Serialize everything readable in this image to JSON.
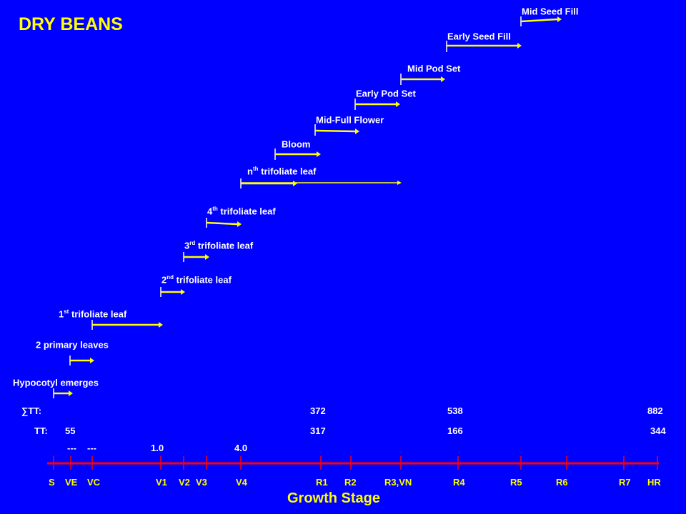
{
  "title": "DRY BEANS",
  "stages": [
    {
      "pre": "",
      "sup": "",
      "post": "Hypocotyl emerges"
    },
    {
      "pre": "",
      "sup": "",
      "post": "2 primary leaves"
    },
    {
      "pre": "1",
      "sup": "st",
      "post": " trifoliate leaf"
    },
    {
      "pre": "2",
      "sup": "nd",
      "post": " trifoliate leaf"
    },
    {
      "pre": "3",
      "sup": "rd",
      "post": " trifoliate leaf"
    },
    {
      "pre": "4",
      "sup": "th",
      "post": " trifoliate leaf"
    },
    {
      "pre": "n",
      "sup": "th",
      "post": " trifoliate leaf"
    },
    {
      "pre": "",
      "sup": "",
      "post": "Bloom"
    },
    {
      "pre": "",
      "sup": "",
      "post": "Mid-Full Flower"
    },
    {
      "pre": "",
      "sup": "",
      "post": "Early Pod Set"
    },
    {
      "pre": "",
      "sup": "",
      "post": "Mid Pod Set"
    },
    {
      "pre": "",
      "sup": "",
      "post": "Early Seed Fill"
    },
    {
      "pre": "",
      "sup": "",
      "post": "Mid Seed Fill"
    }
  ],
  "sum_tt": {
    "label": "∑TT:",
    "values": [
      "372",
      "538",
      "882"
    ]
  },
  "tt": {
    "label": "TT:",
    "values": [
      "55",
      "317",
      "166",
      "344"
    ]
  },
  "leaf_row": [
    "---",
    "---",
    "1.0",
    "4.0"
  ],
  "axis_labels": [
    "S",
    "VE",
    "VC",
    "V1",
    "V2",
    "V3",
    "V4",
    "R1",
    "R2",
    "R3,VN",
    "R4",
    "R5",
    "R6",
    "R7",
    "HR"
  ],
  "axis_title": "Growth Stage",
  "colors": {
    "background": "#0000ff",
    "arrow": "#ffff00",
    "axis": "#ff0000",
    "text": "#ffffff",
    "title": "#ffff00"
  }
}
